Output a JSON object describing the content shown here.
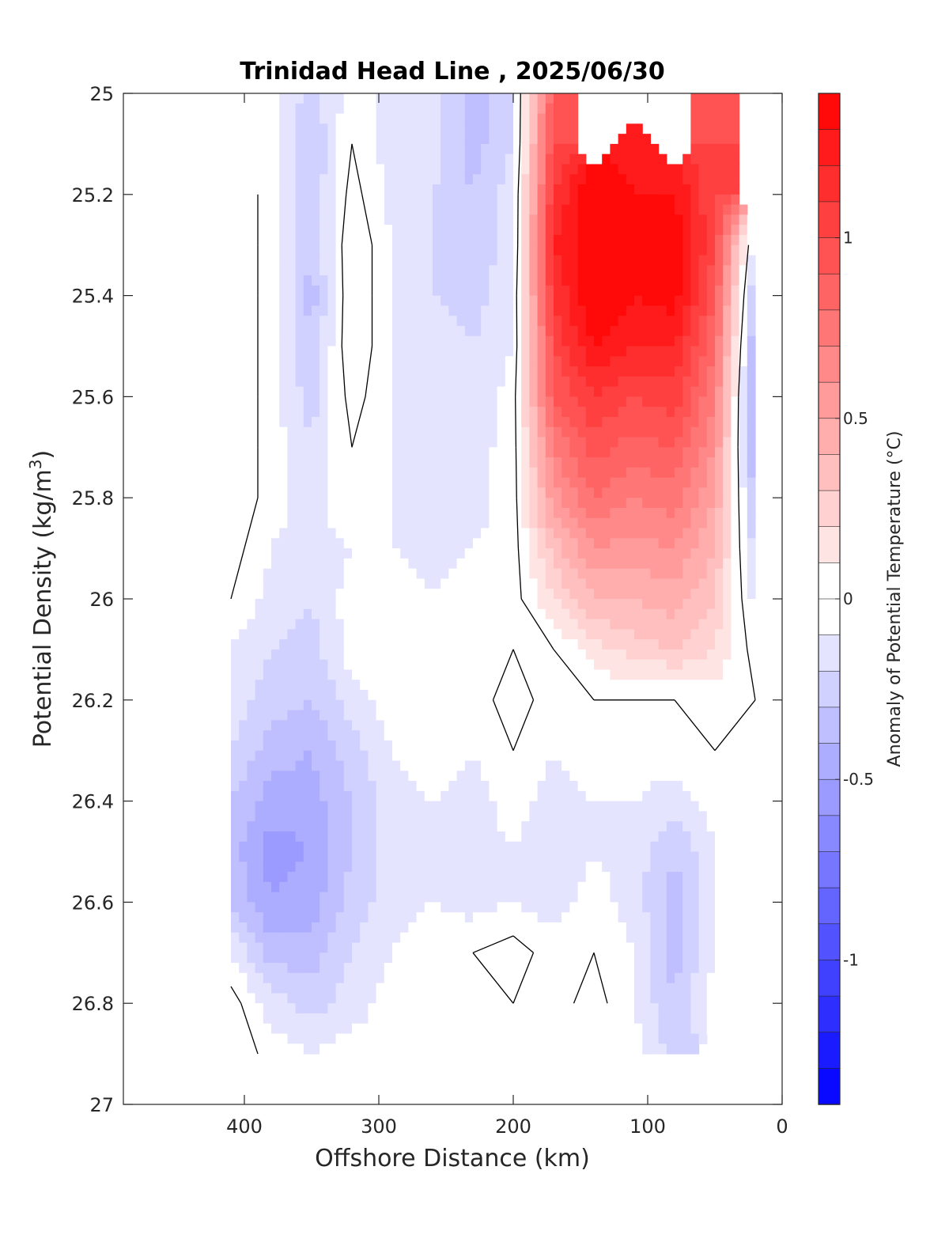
{
  "chart_data": {
    "type": "heatmap",
    "title": "Trinidad Head Line , 2025/06/30",
    "xlabel": "Offshore Distance (km)",
    "ylabel_main": "Potential Density (kg/m",
    "ylabel_sup": "3",
    "ylabel_close": ")",
    "colorbar_label": "Anomaly of Potential Temperature (°C)",
    "x_axis": {
      "range": [
        490,
        0
      ],
      "reversed": true,
      "ticks": [
        400,
        300,
        200,
        100,
        0
      ],
      "tick_labels": [
        "400",
        "300",
        "200",
        "100",
        "0"
      ]
    },
    "y_axis": {
      "range": [
        25,
        27
      ],
      "reversed": true,
      "ticks": [
        25,
        25.2,
        25.4,
        25.6,
        25.8,
        26,
        26.2,
        26.4,
        26.6,
        26.8,
        27
      ],
      "tick_labels": [
        "25",
        "25.2",
        "25.4",
        "25.6",
        "25.8",
        "26",
        "26.2",
        "26.4",
        "26.6",
        "26.8",
        "27"
      ]
    },
    "colorbar": {
      "range": [
        -1.4,
        1.4
      ],
      "levels_step": 0.1,
      "ticks": [
        1,
        0.5,
        0,
        -0.5,
        -1
      ],
      "tick_labels": [
        "1",
        "0.5",
        "0",
        "-0.5",
        "-1"
      ],
      "colormap": "blue-white-red",
      "low_color": "#0000ff",
      "mid_color": "#ffffff",
      "high_color": "#ff0000"
    },
    "zero_contour_color": "#000000",
    "grid": false,
    "x": [
      410,
      380,
      350,
      320,
      290,
      260,
      230,
      200,
      170,
      140,
      110,
      80,
      50,
      20
    ],
    "y": [
      25.0,
      25.1,
      25.2,
      25.3,
      25.4,
      25.5,
      25.6,
      25.7,
      25.8,
      25.9,
      26.0,
      26.1,
      26.2,
      26.3,
      26.4,
      26.5,
      26.6,
      26.7,
      26.8,
      26.9
    ],
    "z": [
      [
        null,
        -0.05,
        -0.25,
        -0.05,
        -0.15,
        -0.15,
        -0.35,
        -0.2,
        0.9,
        null,
        null,
        null,
        0.9,
        null
      ],
      [
        null,
        -0.05,
        -0.3,
        0.0,
        -0.15,
        -0.15,
        -0.35,
        -0.2,
        1.0,
        null,
        1.2,
        null,
        1.0,
        null
      ],
      [
        0.1,
        -0.05,
        -0.3,
        0.05,
        -0.15,
        -0.2,
        -0.3,
        -0.15,
        1.1,
        1.4,
        1.3,
        1.3,
        1.0,
        null
      ],
      [
        0.1,
        -0.05,
        -0.3,
        0.1,
        -0.1,
        -0.2,
        -0.3,
        -0.15,
        1.2,
        1.4,
        1.35,
        1.4,
        1.0,
        -0.2
      ],
      [
        0.1,
        -0.05,
        -0.35,
        0.1,
        -0.1,
        -0.2,
        -0.25,
        -0.1,
        1.1,
        1.4,
        1.3,
        1.35,
        0.9,
        -0.35
      ],
      [
        0.1,
        -0.05,
        -0.3,
        0.1,
        -0.1,
        -0.15,
        -0.2,
        -0.1,
        1.0,
        1.3,
        1.2,
        1.2,
        0.8,
        -0.45
      ],
      [
        0.1,
        -0.05,
        -0.25,
        0.05,
        -0.1,
        -0.15,
        -0.2,
        -0.05,
        0.9,
        1.1,
        1.0,
        1.05,
        0.7,
        -0.5
      ],
      [
        0.1,
        -0.05,
        -0.2,
        0.0,
        -0.1,
        -0.2,
        -0.15,
        -0.05,
        0.7,
        0.95,
        0.85,
        0.9,
        0.6,
        -0.45
      ],
      [
        0.1,
        -0.05,
        -0.15,
        0.0,
        -0.1,
        -0.15,
        -0.15,
        -0.05,
        0.55,
        0.8,
        0.7,
        0.75,
        0.5,
        -0.35
      ],
      [
        0.05,
        -0.1,
        -0.15,
        -0.1,
        -0.1,
        -0.15,
        -0.1,
        -0.05,
        0.35,
        0.6,
        0.55,
        0.6,
        0.4,
        -0.25
      ],
      [
        0.0,
        -0.15,
        -0.2,
        -0.05,
        0.0,
        -0.1,
        -0.05,
        -0.05,
        0.2,
        0.4,
        0.4,
        0.45,
        0.3,
        -0.15
      ],
      [
        -0.1,
        -0.2,
        -0.25,
        -0.05,
        0.0,
        -0.05,
        0.0,
        0.0,
        0.0,
        0.15,
        0.25,
        0.3,
        0.2,
        -0.05
      ],
      [
        -0.15,
        -0.25,
        -0.3,
        -0.15,
        -0.05,
        0.0,
        -0.05,
        0.05,
        -0.05,
        0.0,
        0.0,
        0.0,
        0.05,
        0.0
      ],
      [
        -0.2,
        -0.35,
        -0.4,
        -0.25,
        -0.1,
        -0.05,
        -0.1,
        0.0,
        -0.1,
        -0.05,
        -0.05,
        -0.05,
        0.0,
        -0.05
      ],
      [
        -0.3,
        -0.45,
        -0.45,
        -0.3,
        -0.15,
        -0.1,
        -0.15,
        -0.05,
        -0.15,
        -0.1,
        -0.1,
        -0.15,
        -0.05,
        -0.05
      ],
      [
        -0.35,
        -0.55,
        -0.5,
        -0.3,
        -0.15,
        -0.1,
        -0.15,
        -0.1,
        -0.2,
        -0.1,
        -0.15,
        -0.3,
        -0.1,
        -0.05
      ],
      [
        -0.3,
        -0.5,
        -0.45,
        -0.25,
        -0.15,
        -0.1,
        -0.15,
        -0.1,
        -0.15,
        -0.05,
        -0.15,
        -0.35,
        -0.1,
        -0.05
      ],
      [
        -0.1,
        -0.35,
        -0.35,
        -0.2,
        -0.1,
        -0.05,
        0.0,
        0.05,
        -0.05,
        0.0,
        -0.1,
        -0.35,
        -0.1,
        null
      ],
      [
        0.05,
        -0.15,
        -0.25,
        -0.15,
        -0.05,
        -0.05,
        0.0,
        0.0,
        -0.05,
        0.05,
        -0.1,
        -0.3,
        -0.05,
        null
      ],
      [
        0.1,
        -0.05,
        -0.1,
        -0.05,
        null,
        null,
        null,
        null,
        null,
        null,
        -0.05,
        -0.25,
        null,
        null
      ]
    ]
  }
}
